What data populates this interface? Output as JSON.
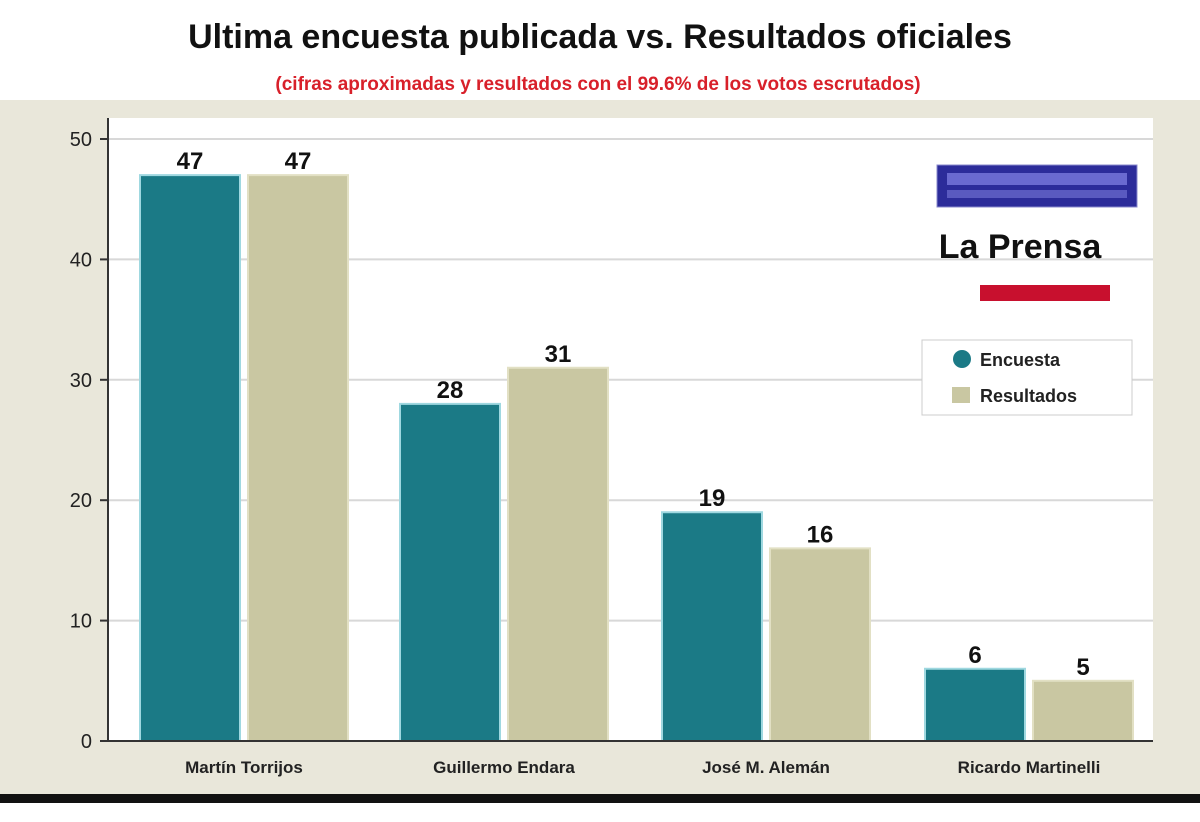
{
  "chart_data": {
    "type": "bar",
    "title": "Ultima encuesta publicada vs. Resultados oficiales",
    "subtitle": "(cifras aproximadas y resultados con el 99.6% de los votos escrutados)",
    "categories": [
      "Martín Torrijos",
      "Guillermo Endara",
      "José M. Alemán",
      "Ricardo Martinelli"
    ],
    "series": [
      {
        "name": "Encuesta",
        "values": [
          47,
          28,
          19,
          6
        ],
        "color": "#1b7a86"
      },
      {
        "name": "Resultados",
        "values": [
          47,
          31,
          16,
          5
        ],
        "color": "#c9c7a2"
      }
    ],
    "ylim": [
      0,
      50
    ],
    "yticks": [
      0,
      10,
      20,
      30,
      40,
      50
    ],
    "grid": true,
    "legend": "right",
    "xlabel": "",
    "ylabel": ""
  },
  "logos": {
    "prensa": "La Prensa"
  },
  "colors": {
    "subtitle": "#d8202a",
    "background": "#e9e7da"
  }
}
